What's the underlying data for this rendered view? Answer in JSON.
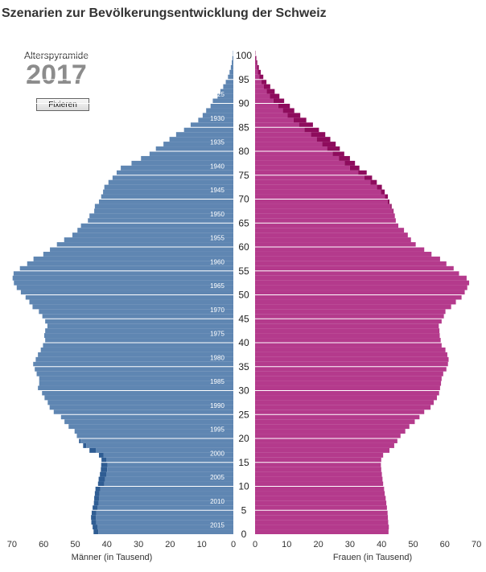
{
  "header": {
    "title": "Szenarien zur Bevölkerungsentwicklung der Schweiz",
    "subtitle": "Alterspyramide",
    "year": "2017",
    "fix_button": "Fixieren"
  },
  "colors": {
    "male_current": "#5f86b2",
    "male_dark": "#2f5d93",
    "female_current": "#b43a8c",
    "female_dark": "#8e0c5d",
    "axis_text": "#333333"
  },
  "chart_data": {
    "type": "bar",
    "title": "Alterspyramide",
    "male_axis_label": "Männer (in Tausend)",
    "female_axis_label": "Frauen (in Tausend)",
    "x_ticks": [
      70,
      60,
      50,
      40,
      30,
      20,
      10,
      0
    ],
    "y_ticks": [
      0,
      5,
      10,
      15,
      20,
      25,
      30,
      35,
      40,
      45,
      50,
      55,
      60,
      65,
      70,
      75,
      80,
      85,
      90,
      95,
      100
    ],
    "xlim": [
      0,
      70
    ],
    "ylim": [
      0,
      100
    ],
    "birth_year_labels": [
      {
        "age": 2,
        "year": "2015"
      },
      {
        "age": 7,
        "year": "2010"
      },
      {
        "age": 12,
        "year": "2005"
      },
      {
        "age": 17,
        "year": "2000"
      },
      {
        "age": 22,
        "year": "1995"
      },
      {
        "age": 27,
        "year": "1990"
      },
      {
        "age": 32,
        "year": "1985"
      },
      {
        "age": 37,
        "year": "1980"
      },
      {
        "age": 42,
        "year": "1975"
      },
      {
        "age": 47,
        "year": "1970"
      },
      {
        "age": 52,
        "year": "1965"
      },
      {
        "age": 57,
        "year": "1960"
      },
      {
        "age": 62,
        "year": "1955"
      },
      {
        "age": 67,
        "year": "1950"
      },
      {
        "age": 72,
        "year": "1945"
      },
      {
        "age": 77,
        "year": "1940"
      },
      {
        "age": 82,
        "year": "1935"
      },
      {
        "age": 87,
        "year": "1930"
      },
      {
        "age": 92,
        "year": "1925"
      }
    ],
    "ages": [
      0,
      1,
      2,
      3,
      4,
      5,
      6,
      7,
      8,
      9,
      10,
      11,
      12,
      13,
      14,
      15,
      16,
      17,
      18,
      19,
      20,
      21,
      22,
      23,
      24,
      25,
      26,
      27,
      28,
      29,
      30,
      31,
      32,
      33,
      34,
      35,
      36,
      37,
      38,
      39,
      40,
      41,
      42,
      43,
      44,
      45,
      46,
      47,
      48,
      49,
      50,
      51,
      52,
      53,
      54,
      55,
      56,
      57,
      58,
      59,
      60,
      61,
      62,
      63,
      64,
      65,
      66,
      67,
      68,
      69,
      70,
      71,
      72,
      73,
      74,
      75,
      76,
      77,
      78,
      79,
      80,
      81,
      82,
      83,
      84,
      85,
      86,
      87,
      88,
      89,
      90,
      91,
      92,
      93,
      94,
      95,
      96,
      97,
      98,
      99,
      100
    ],
    "series": [
      {
        "name": "Männer",
        "values": [
          44.2,
          44.5,
          44.9,
          45.0,
          44.8,
          44.5,
          44.1,
          44.0,
          43.8,
          43.6,
          42.8,
          42.6,
          42.2,
          41.9,
          41.8,
          41.7,
          42.5,
          45.5,
          47.5,
          48.8,
          49.5,
          50.2,
          52.1,
          53.4,
          54.5,
          56.8,
          58.1,
          58.7,
          59.7,
          60.5,
          61.8,
          61.4,
          61.4,
          62.2,
          62.8,
          63.3,
          62.5,
          61.8,
          60.9,
          60.2,
          59.5,
          59.8,
          59.5,
          58.8,
          59.5,
          60.4,
          61.5,
          63.5,
          64.5,
          65.7,
          67.2,
          68.5,
          69.4,
          69.8,
          69.5,
          67.5,
          65.2,
          63.2,
          60.1,
          58.0,
          55.8,
          53.5,
          50.9,
          49.3,
          48.2,
          46.0,
          45.5,
          44.0,
          43.8,
          42.5,
          41.8,
          41.2,
          40.8,
          39.5,
          38.2,
          36.9,
          35.6,
          32.2,
          29.2,
          26.5,
          24.5,
          22.1,
          20.2,
          18.1,
          15.6,
          13.5,
          11.1,
          9.7,
          8.6,
          7.2,
          6.5,
          5.0,
          4.1,
          3.2,
          2.4,
          1.7,
          1.2,
          0.8,
          0.5,
          0.3,
          0.1
        ],
        "reference": [
          42.7,
          43.0,
          43.4,
          43.5,
          43.3,
          43.0,
          42.6,
          42.5,
          42.3,
          42.1,
          40.8,
          40.6,
          40.2,
          39.9,
          39.8,
          40.2,
          41.0,
          43.5,
          46.5,
          48.3,
          49.5,
          50.2,
          52.1,
          53.4,
          54.5,
          56.8,
          58.1,
          58.7,
          59.7,
          60.5,
          61.8,
          61.4,
          61.4,
          62.2,
          62.8,
          63.3,
          62.5,
          61.8,
          60.9,
          60.2,
          59.5,
          59.8,
          59.5,
          58.8,
          59.5,
          60.4,
          61.5,
          63.5,
          64.5,
          65.7,
          67.2,
          68.5,
          69.4,
          69.8,
          69.5,
          67.5,
          65.2,
          63.2,
          60.1,
          58.0,
          55.8,
          53.5,
          50.9,
          49.3,
          48.2,
          46.0,
          45.5,
          44.0,
          43.8,
          42.5,
          41.8,
          41.2,
          40.8,
          39.5,
          38.2,
          36.9,
          35.6,
          32.2,
          29.2,
          26.5,
          24.5,
          22.1,
          20.2,
          18.1,
          15.6,
          13.5,
          11.1,
          9.7,
          8.6,
          7.2,
          6.5,
          5.0,
          4.1,
          3.2,
          2.4,
          1.7,
          1.2,
          0.8,
          0.5,
          0.3,
          0.1
        ]
      },
      {
        "name": "Frauen",
        "values": [
          42.2,
          42.3,
          42.1,
          42.0,
          41.9,
          41.7,
          41.5,
          41.3,
          41.0,
          40.8,
          40.5,
          40.3,
          40.1,
          39.9,
          39.8,
          39.9,
          40.5,
          42.5,
          44.0,
          45.0,
          46.0,
          47.5,
          48.8,
          50.5,
          52.0,
          53.5,
          55.5,
          56.5,
          57.5,
          58.2,
          58.5,
          58.8,
          59.0,
          59.5,
          60.5,
          61.0,
          61.2,
          60.8,
          60.2,
          59.0,
          58.7,
          58.4,
          58.3,
          58.1,
          59.0,
          59.7,
          60.2,
          62.0,
          63.5,
          65.3,
          66.3,
          67.1,
          67.7,
          66.9,
          64.5,
          62.8,
          60.5,
          58.5,
          55.8,
          53.5,
          50.8,
          49.3,
          48.3,
          47.1,
          45.3,
          44.5,
          44.2,
          43.8,
          43.2,
          42.5,
          42.0,
          41.0,
          40.1,
          38.5,
          37.0,
          35.3,
          33.0,
          31.6,
          30.0,
          28.2,
          26.8,
          25.5,
          23.8,
          22.2,
          20.2,
          18.3,
          16.2,
          14.3,
          12.4,
          11.0,
          9.2,
          7.7,
          6.2,
          4.8,
          3.6,
          2.6,
          1.8,
          1.2,
          0.7,
          0.4,
          0.1
        ],
        "reference": [
          42.2,
          42.3,
          42.1,
          42.0,
          41.9,
          41.7,
          41.5,
          41.3,
          41.0,
          40.8,
          40.5,
          40.3,
          40.1,
          39.9,
          39.8,
          39.9,
          40.5,
          42.5,
          44.0,
          45.0,
          46.0,
          47.5,
          48.8,
          50.5,
          52.0,
          53.5,
          55.5,
          56.5,
          57.5,
          58.2,
          58.5,
          58.8,
          59.0,
          59.5,
          60.5,
          61.0,
          61.2,
          60.8,
          60.2,
          59.0,
          58.7,
          58.4,
          58.3,
          58.1,
          59.0,
          59.7,
          60.2,
          62.0,
          63.5,
          65.3,
          66.3,
          67.1,
          67.7,
          66.9,
          64.5,
          62.8,
          60.5,
          58.5,
          55.8,
          53.5,
          50.8,
          49.3,
          48.3,
          47.1,
          45.3,
          44.5,
          44.2,
          43.6,
          42.8,
          41.9,
          41.1,
          39.8,
          38.5,
          36.5,
          34.6,
          32.6,
          30.0,
          28.3,
          26.5,
          24.5,
          22.8,
          21.2,
          19.5,
          17.7,
          15.6,
          13.9,
          12.2,
          10.3,
          8.8,
          7.3,
          5.8,
          4.7,
          3.7,
          2.8,
          2.0,
          1.4,
          0.9,
          0.6,
          0.3,
          0.1,
          0.0
        ]
      }
    ]
  }
}
